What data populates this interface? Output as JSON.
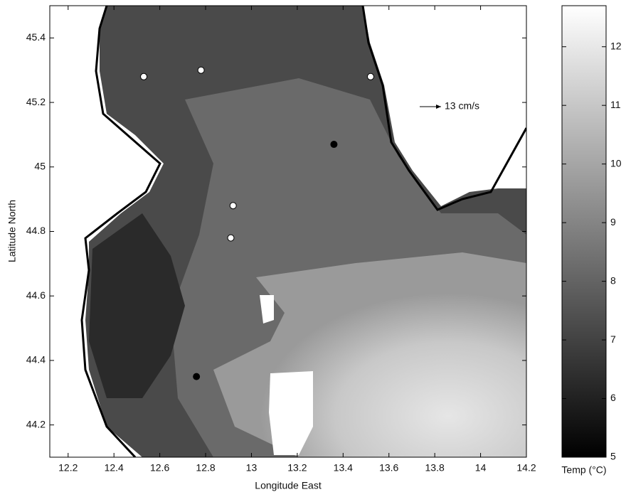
{
  "chart_data": {
    "type": "map",
    "xlabel": "Longitude East",
    "ylabel": "Latitude North",
    "xlim": [
      12.12,
      14.2
    ],
    "ylim": [
      44.1,
      45.5
    ],
    "xticks": [
      12.2,
      12.4,
      12.6,
      12.8,
      13,
      13.2,
      13.4,
      13.6,
      13.8,
      14,
      14.2
    ],
    "yticks": [
      44.2,
      44.4,
      44.6,
      44.8,
      45,
      45.2,
      45.4
    ],
    "colorbar": {
      "label": "Temp (°C)",
      "lim": [
        5,
        12.7
      ],
      "ticks": [
        5,
        6,
        7,
        8,
        9,
        10,
        11,
        12
      ]
    },
    "annotation": "13 cm/s",
    "series": [
      {
        "color": "#ffffff",
        "x": [
          12.53,
          12.78,
          13.52,
          12.92,
          12.91
        ],
        "y": [
          45.28,
          45.3,
          45.28,
          44.88,
          44.78
        ]
      },
      {
        "color": "#000000",
        "x": [
          13.36,
          12.76
        ],
        "y": [
          45.07,
          44.35
        ]
      }
    ]
  }
}
